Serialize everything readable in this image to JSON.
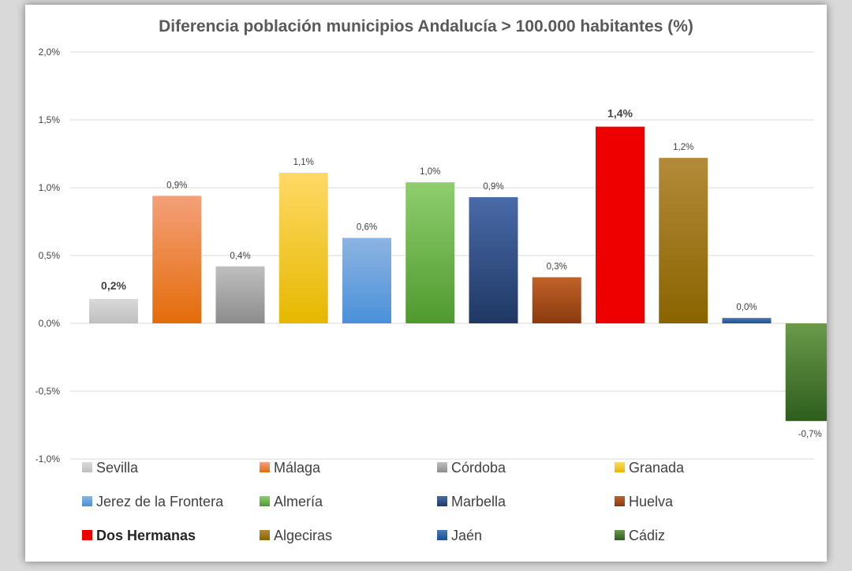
{
  "chart_data": {
    "type": "bar",
    "title": "Diferencia población municipios Andalucía > 100.000 habitantes (%)",
    "xlabel": "",
    "ylabel": "",
    "ylim": [
      -1.0,
      2.0
    ],
    "yticks": [
      {
        "value": 2.0,
        "label": "2,0%"
      },
      {
        "value": 1.5,
        "label": "1,5%"
      },
      {
        "value": 1.0,
        "label": "1,0%"
      },
      {
        "value": 0.5,
        "label": "0,5%"
      },
      {
        "value": 0.0,
        "label": "0,0%"
      },
      {
        "value": -0.5,
        "label": "-0,5%"
      },
      {
        "value": -1.0,
        "label": "-1,0%"
      }
    ],
    "grid": true,
    "legend_position": "bottom",
    "categories": [
      "Sevilla",
      "Málaga",
      "Córdoba",
      "Granada",
      "Jerez de la Frontera",
      "Almería",
      "Marbella",
      "Huelva",
      "Dos Hermanas",
      "Algeciras",
      "Jaén",
      "Cádiz"
    ],
    "values": [
      0.18,
      0.94,
      0.42,
      1.11,
      0.63,
      1.04,
      0.93,
      0.34,
      1.45,
      1.22,
      0.04,
      -0.72
    ],
    "data_labels": [
      "0,2%",
      "0,9%",
      "0,4%",
      "1,1%",
      "0,6%",
      "1,0%",
      "0,9%",
      "0,3%",
      "1,4%",
      "1,2%",
      "0,0%",
      "-0,7%"
    ],
    "highlighted": [
      true,
      false,
      false,
      false,
      false,
      false,
      false,
      false,
      true,
      false,
      false,
      false
    ],
    "colors": [
      [
        "#d9d9d9",
        "#bfbfbf"
      ],
      [
        "#f4a07a",
        "#e46c0a"
      ],
      [
        "#bfbfbf",
        "#8c8c8c"
      ],
      [
        "#ffd966",
        "#e6b800"
      ],
      [
        "#8db4e2",
        "#4a90d9"
      ],
      [
        "#8fce6e",
        "#4f9a2e"
      ],
      [
        "#4a6aa8",
        "#1f3864"
      ],
      [
        "#c0622a",
        "#8b3a0e"
      ],
      [
        "#ff1a1a",
        "#ee0000"
      ],
      [
        "#b38a3a",
        "#8a6400"
      ],
      [
        "#4a7ab8",
        "#1f4e8c"
      ],
      [
        "#6a9a4a",
        "#2e5e1e"
      ]
    ]
  }
}
